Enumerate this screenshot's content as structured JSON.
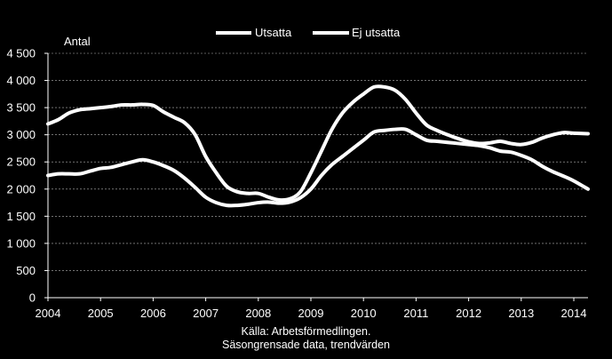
{
  "chart_data": {
    "type": "line",
    "ylabel": "Antal",
    "ylim": [
      0,
      4500
    ],
    "yticks": [
      "0",
      "500",
      "1 000",
      "1 500",
      "2 000",
      "2 500",
      "3 000",
      "3 500",
      "4 000",
      "4 500"
    ],
    "xlim": [
      2004.0,
      2014.27
    ],
    "xticks": [
      "2004",
      "2005",
      "2006",
      "2007",
      "2008",
      "2009",
      "2010",
      "2011",
      "2012",
      "2013",
      "2014"
    ],
    "grid": true,
    "legend": "top",
    "colors": {
      "background": "#000000",
      "line": "#ffffff",
      "grid": "#ffffff",
      "axis": "#ffffff"
    },
    "series": [
      {
        "name": "Utsatta",
        "x": [
          2004.0,
          2004.2,
          2004.4,
          2004.6,
          2004.8,
          2005.0,
          2005.2,
          2005.4,
          2005.6,
          2005.8,
          2006.0,
          2006.2,
          2006.4,
          2006.6,
          2006.8,
          2007.0,
          2007.2,
          2007.4,
          2007.6,
          2007.8,
          2008.0,
          2008.2,
          2008.4,
          2008.6,
          2008.8,
          2009.0,
          2009.2,
          2009.4,
          2009.6,
          2009.8,
          2010.0,
          2010.2,
          2010.4,
          2010.6,
          2010.8,
          2011.0,
          2011.2,
          2011.4,
          2011.6,
          2011.8,
          2012.0,
          2012.2,
          2012.4,
          2012.6,
          2012.8,
          2013.0,
          2013.2,
          2013.4,
          2013.6,
          2013.8,
          2014.0,
          2014.27
        ],
        "values": [
          3200,
          3280,
          3400,
          3460,
          3480,
          3500,
          3520,
          3550,
          3550,
          3560,
          3540,
          3420,
          3320,
          3220,
          3000,
          2600,
          2300,
          2050,
          1950,
          1920,
          1920,
          1850,
          1800,
          1820,
          1950,
          2300,
          2700,
          3100,
          3400,
          3600,
          3750,
          3880,
          3880,
          3820,
          3650,
          3400,
          3180,
          3080,
          3000,
          2930,
          2870,
          2840,
          2850,
          2880,
          2840,
          2820,
          2860,
          2940,
          3000,
          3040,
          3030,
          3020
        ]
      },
      {
        "name": "Ej utsatta",
        "x": [
          2004.0,
          2004.2,
          2004.4,
          2004.6,
          2004.8,
          2005.0,
          2005.2,
          2005.4,
          2005.6,
          2005.8,
          2006.0,
          2006.2,
          2006.4,
          2006.6,
          2006.8,
          2007.0,
          2007.2,
          2007.4,
          2007.6,
          2007.8,
          2008.0,
          2008.2,
          2008.4,
          2008.6,
          2008.8,
          2009.0,
          2009.2,
          2009.4,
          2009.6,
          2009.8,
          2010.0,
          2010.2,
          2010.4,
          2010.6,
          2010.8,
          2011.0,
          2011.2,
          2011.4,
          2011.6,
          2011.8,
          2012.0,
          2012.2,
          2012.4,
          2012.6,
          2012.8,
          2013.0,
          2013.2,
          2013.4,
          2013.6,
          2013.8,
          2014.0,
          2014.27
        ],
        "values": [
          2250,
          2280,
          2280,
          2280,
          2330,
          2380,
          2400,
          2450,
          2500,
          2540,
          2500,
          2430,
          2340,
          2200,
          2030,
          1850,
          1750,
          1700,
          1700,
          1720,
          1750,
          1760,
          1740,
          1760,
          1840,
          2000,
          2250,
          2450,
          2600,
          2750,
          2900,
          3050,
          3080,
          3100,
          3100,
          3000,
          2900,
          2880,
          2860,
          2840,
          2820,
          2800,
          2760,
          2700,
          2680,
          2620,
          2540,
          2420,
          2320,
          2240,
          2150,
          2000
        ]
      }
    ],
    "source_line1": "Källa: Arbetsförmedlingen.",
    "source_line2": "Säsongrensade data, trendvärden"
  }
}
